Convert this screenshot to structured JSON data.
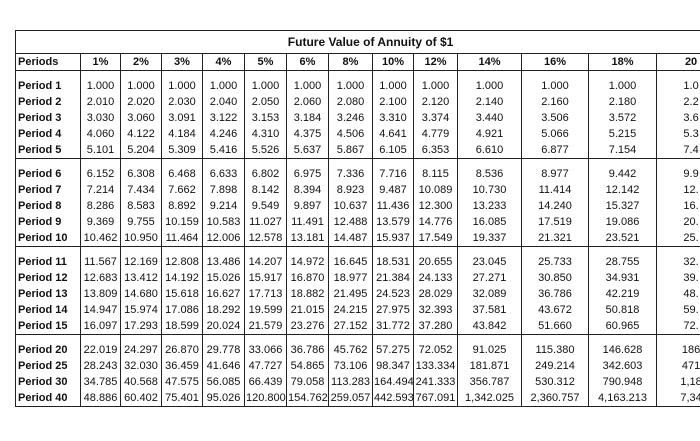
{
  "table": {
    "title": "Future Value of Annuity of $1",
    "header": [
      "Periods",
      "1%",
      "2%",
      "3%",
      "4%",
      "5%",
      "6%",
      "8%",
      "10%",
      "12%",
      "14%",
      "16%",
      "18%",
      "20"
    ],
    "groups": [
      [
        [
          "Period 1",
          "1.000",
          "1.000",
          "1.000",
          "1.000",
          "1.000",
          "1.000",
          "1.000",
          "1.000",
          "1.000",
          "1.000",
          "1.000",
          "1.000",
          "1.0"
        ],
        [
          "Period 2",
          "2.010",
          "2.020",
          "2.030",
          "2.040",
          "2.050",
          "2.060",
          "2.080",
          "2.100",
          "2.120",
          "2.140",
          "2.160",
          "2.180",
          "2.2"
        ],
        [
          "Period 3",
          "3.030",
          "3.060",
          "3.091",
          "3.122",
          "3.153",
          "3.184",
          "3.246",
          "3.310",
          "3.374",
          "3.440",
          "3.506",
          "3.572",
          "3.6"
        ],
        [
          "Period 4",
          "4.060",
          "4.122",
          "4.184",
          "4.246",
          "4.310",
          "4.375",
          "4.506",
          "4.641",
          "4.779",
          "4.921",
          "5.066",
          "5.215",
          "5.3"
        ],
        [
          "Period 5",
          "5.101",
          "5.204",
          "5.309",
          "5.416",
          "5.526",
          "5.637",
          "5.867",
          "6.105",
          "6.353",
          "6.610",
          "6.877",
          "7.154",
          "7.4"
        ]
      ],
      [
        [
          "Period 6",
          "6.152",
          "6.308",
          "6.468",
          "6.633",
          "6.802",
          "6.975",
          "7.336",
          "7.716",
          "8.115",
          "8.536",
          "8.977",
          "9.442",
          "9.9"
        ],
        [
          "Period 7",
          "7.214",
          "7.434",
          "7.662",
          "7.898",
          "8.142",
          "8.394",
          "8.923",
          "9.487",
          "10.089",
          "10.730",
          "11.414",
          "12.142",
          "12."
        ],
        [
          "Period 8",
          "8.286",
          "8.583",
          "8.892",
          "9.214",
          "9.549",
          "9.897",
          "10.637",
          "11.436",
          "12.300",
          "13.233",
          "14.240",
          "15.327",
          "16."
        ],
        [
          "Period 9",
          "9.369",
          "9.755",
          "10.159",
          "10.583",
          "11.027",
          "11.491",
          "12.488",
          "13.579",
          "14.776",
          "16.085",
          "17.519",
          "19.086",
          "20."
        ],
        [
          "Period 10",
          "10.462",
          "10.950",
          "11.464",
          "12.006",
          "12.578",
          "13.181",
          "14.487",
          "15.937",
          "17.549",
          "19.337",
          "21.321",
          "23.521",
          "25."
        ]
      ],
      [
        [
          "Period 11",
          "11.567",
          "12.169",
          "12.808",
          "13.486",
          "14.207",
          "14.972",
          "16.645",
          "18.531",
          "20.655",
          "23.045",
          "25.733",
          "28.755",
          "32."
        ],
        [
          "Period 12",
          "12.683",
          "13.412",
          "14.192",
          "15.026",
          "15.917",
          "16.870",
          "18.977",
          "21.384",
          "24.133",
          "27.271",
          "30.850",
          "34.931",
          "39."
        ],
        [
          "Period 13",
          "13.809",
          "14.680",
          "15.618",
          "16.627",
          "17.713",
          "18.882",
          "21.495",
          "24.523",
          "28.029",
          "32.089",
          "36.786",
          "42.219",
          "48."
        ],
        [
          "Period 14",
          "14.947",
          "15.974",
          "17.086",
          "18.292",
          "19.599",
          "21.015",
          "24.215",
          "27.975",
          "32.393",
          "37.581",
          "43.672",
          "50.818",
          "59."
        ],
        [
          "Period 15",
          "16.097",
          "17.293",
          "18.599",
          "20.024",
          "21.579",
          "23.276",
          "27.152",
          "31.772",
          "37.280",
          "43.842",
          "51.660",
          "60.965",
          "72."
        ]
      ],
      [
        [
          "Period 20",
          "22.019",
          "24.297",
          "26.870",
          "29.778",
          "33.066",
          "36.786",
          "45.762",
          "57.275",
          "72.052",
          "91.025",
          "115.380",
          "146.628",
          "186"
        ],
        [
          "Period 25",
          "28.243",
          "32.030",
          "36.459",
          "41.646",
          "47.727",
          "54.865",
          "73.106",
          "98.347",
          "133.334",
          "181.871",
          "249.214",
          "342.603",
          "471"
        ],
        [
          "Period 30",
          "34.785",
          "40.568",
          "47.575",
          "56.085",
          "66.439",
          "79.058",
          "113.283",
          "164.494",
          "241.333",
          "356.787",
          "530.312",
          "790.948",
          "1,18"
        ],
        [
          "Period 40",
          "48.886",
          "60.402",
          "75.401",
          "95.026",
          "120.800",
          "154.762",
          "259.057",
          "442.593",
          "767.091",
          "1,342.025",
          "2,360.757",
          "4,163.213",
          "7,34"
        ]
      ]
    ]
  }
}
